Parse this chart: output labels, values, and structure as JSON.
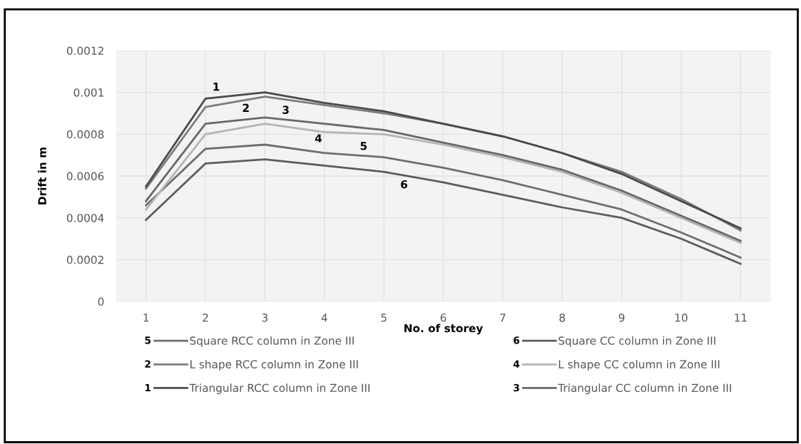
{
  "chart_data": {
    "type": "line",
    "xlabel": "No. of storey",
    "ylabel": "Drift in m",
    "categories": [
      "1",
      "2",
      "3",
      "4",
      "5",
      "6",
      "7",
      "8",
      "9",
      "10",
      "11"
    ],
    "series": [
      {
        "name": "Square RCC column in Zone III",
        "color": "#6e6e6e",
        "values": [
          0.00046,
          0.00073,
          0.00075,
          0.00071,
          0.00069,
          0.00064,
          0.00058,
          0.00051,
          0.00044,
          0.00033,
          0.00021
        ]
      },
      {
        "name": "L shape RCC column in Zone III",
        "color": "#7c7c7c",
        "values": [
          0.00054,
          0.00093,
          0.00098,
          0.00094,
          0.0009,
          0.00085,
          0.00079,
          0.00071,
          0.00062,
          0.00049,
          0.00034
        ]
      },
      {
        "name": "Triangular RCC column in Zone III",
        "color": "#4a4a4a",
        "values": [
          0.00055,
          0.00097,
          0.001,
          0.00095,
          0.00091,
          0.00085,
          0.00079,
          0.00071,
          0.00061,
          0.00048,
          0.00035
        ]
      },
      {
        "name": "Square CC column in Zone III",
        "color": "#5c5c5c",
        "values": [
          0.00039,
          0.00066,
          0.00068,
          0.00065,
          0.00062,
          0.00057,
          0.00051,
          0.00045,
          0.0004,
          0.0003,
          0.00018
        ]
      },
      {
        "name": "L shape CC column in Zone III",
        "color": "#b4b4b4",
        "values": [
          0.00044,
          0.0008,
          0.00085,
          0.00081,
          0.0008,
          0.00075,
          0.00069,
          0.00062,
          0.00052,
          0.0004,
          0.00028
        ]
      },
      {
        "name": "Triangular CC column in Zone III",
        "color": "#686868",
        "values": [
          0.00048,
          0.00085,
          0.00088,
          0.00085,
          0.00082,
          0.00076,
          0.0007,
          0.00063,
          0.00053,
          0.00041,
          0.00029
        ]
      }
    ],
    "annotations": [
      "5",
      "2",
      "1",
      "6",
      "4",
      "3"
    ],
    "ylim": [
      0,
      0.0012
    ],
    "yticks": [
      0,
      0.0002,
      0.0004,
      0.0006,
      0.0008,
      0.001,
      0.0012
    ],
    "grid": true,
    "legend": "bottom",
    "marker": "none",
    "line_style": "solid"
  }
}
